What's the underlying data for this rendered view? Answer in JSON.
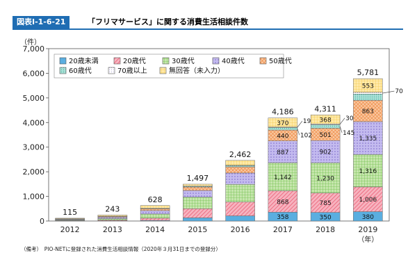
{
  "figure": {
    "number": "図表Ⅰ-1-6-21",
    "title": "「フリマサービス」に関する消費生活相談件数",
    "footnote": "（備考）　PIO-NETに登録された消費生活相談情報（2020年３月31日までの登録分）"
  },
  "chart_data": {
    "type": "bar",
    "stacked": true,
    "y_unit": "（件）",
    "x_unit": "（年）",
    "ylim": [
      0,
      7000
    ],
    "yticks": [
      0,
      1000,
      2000,
      3000,
      4000,
      5000,
      6000,
      7000
    ],
    "ytick_labels": [
      "0",
      "1,000",
      "2,000",
      "3,000",
      "4,000",
      "5,000",
      "6,000",
      "7,000"
    ],
    "categories": [
      "2012",
      "2013",
      "2014",
      "2015",
      "2016",
      "2017",
      "2018",
      "2019"
    ],
    "totals": [
      115,
      243,
      628,
      1497,
      2462,
      4186,
      4311,
      5781
    ],
    "total_labels": [
      "115",
      "243",
      "628",
      "1,497",
      "2,462",
      "4,186",
      "4,311",
      "5,781"
    ],
    "legend_position": "top-left",
    "series": [
      {
        "name": "20歳未満",
        "color": "#5aaee0",
        "pattern": "solid",
        "values": [
          5,
          10,
          25,
          130,
          210,
          358,
          350,
          380
        ],
        "labels": [
          "",
          "",
          "",
          "",
          "",
          "358",
          "350",
          "380"
        ]
      },
      {
        "name": "20歳代",
        "color": "#f08a9a",
        "pattern": "diagonal",
        "values": [
          15,
          30,
          90,
          370,
          560,
          868,
          785,
          1006
        ],
        "labels": [
          "",
          "",
          "",
          "",
          "",
          "868",
          "785",
          "1,006"
        ]
      },
      {
        "name": "30歳代",
        "color": "#9fd37a",
        "pattern": "grid",
        "values": [
          25,
          60,
          170,
          470,
          720,
          1142,
          1230,
          1316
        ],
        "labels": [
          "",
          "",
          "",
          "",
          "",
          "1,142",
          "1,230",
          "1,316"
        ]
      },
      {
        "name": "40歳代",
        "color": "#a99be0",
        "pattern": "dots",
        "values": [
          25,
          55,
          140,
          270,
          460,
          887,
          902,
          1335
        ],
        "labels": [
          "",
          "",
          "",
          "",
          "",
          "887",
          "902",
          "1,335"
        ]
      },
      {
        "name": "50歳代",
        "color": "#f5a86c",
        "pattern": "cross",
        "values": [
          15,
          30,
          70,
          140,
          250,
          440,
          501,
          863
        ],
        "labels": [
          "",
          "",
          "",
          "",
          "",
          "440",
          "501",
          "863"
        ]
      },
      {
        "name": "60歳代",
        "color": "#7fcfc2",
        "pattern": "dots",
        "values": [
          5,
          8,
          18,
          30,
          50,
          102,
          145,
          258
        ],
        "labels": [
          "",
          "",
          "",
          "",
          "",
          "102",
          "145",
          "258"
        ]
      },
      {
        "name": "70歳以上",
        "color": "#ffffff",
        "pattern": "dots",
        "values": [
          0,
          2,
          5,
          7,
          12,
          19,
          30,
          70
        ],
        "labels": [
          "",
          "",
          "",
          "",
          "",
          "19",
          "30",
          "70"
        ]
      },
      {
        "name": "無回答（未入力）",
        "color": "#ffe08a",
        "pattern": "grid",
        "values": [
          25,
          48,
          110,
          80,
          200,
          370,
          368,
          553
        ],
        "labels": [
          "",
          "",
          "",
          "",
          "",
          "370",
          "368",
          "553"
        ]
      }
    ],
    "callouts": [
      {
        "category": "2017",
        "series": "70歳以上",
        "text": "19"
      },
      {
        "category": "2017",
        "series": "60歳代",
        "text": "102"
      },
      {
        "category": "2018",
        "series": "70歳以上",
        "text": "30"
      },
      {
        "category": "2018",
        "series": "60歳代",
        "text": "145"
      },
      {
        "category": "2019",
        "series": "70歳以上",
        "text": "70"
      }
    ]
  }
}
